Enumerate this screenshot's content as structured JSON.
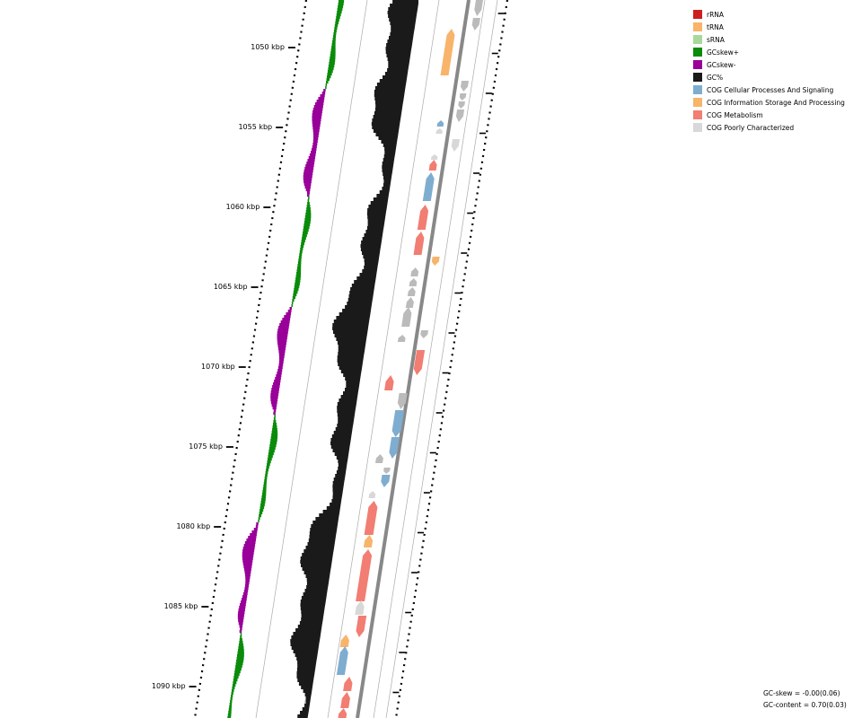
{
  "map": {
    "ticks": [
      {
        "label": "1050 kbp"
      },
      {
        "label": "1055 kbp"
      },
      {
        "label": "1060 kbp"
      },
      {
        "label": "1065 kbp"
      },
      {
        "label": "1070 kbp"
      },
      {
        "label": "1075 kbp"
      },
      {
        "label": "1080 kbp"
      },
      {
        "label": "1085 kbp"
      },
      {
        "label": "1090 kbp"
      }
    ]
  },
  "legend": {
    "items": [
      {
        "label": "rRNA",
        "color": "#cc1f1f"
      },
      {
        "label": "tRNA",
        "color": "#f7b46a"
      },
      {
        "label": "sRNA",
        "color": "#a8d99a"
      },
      {
        "label": "GCskew+",
        "color": "#0a8c0a"
      },
      {
        "label": "GCskew-",
        "color": "#990099"
      },
      {
        "label": "GC%",
        "color": "#1a1a1a"
      },
      {
        "label": "COG Cellular Processes And Signaling",
        "color": "#7fadd0"
      },
      {
        "label": "COG Information Storage And Processing",
        "color": "#f7b46a"
      },
      {
        "label": "COG Metabolism",
        "color": "#f27d72"
      },
      {
        "label": "COG Poorly Characterized",
        "color": "#d8d8d8"
      }
    ]
  },
  "stats": {
    "gc_skew": "GC-skew = -0.00(0.06)",
    "gc_content": "GC-content = 0.70(0.03)"
  }
}
